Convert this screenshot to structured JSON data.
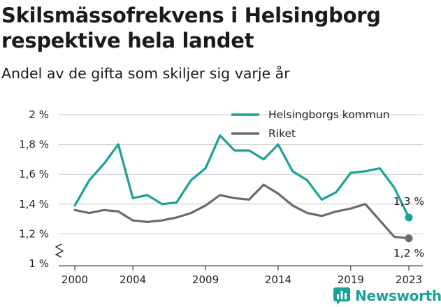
{
  "header": {
    "title": "Skilsmässofrekvens i Helsingborg respektive hela landet",
    "subtitle": "Andel av de gifta som skiljer sig varje år"
  },
  "brand": {
    "name": "Newsworthy",
    "icon": "newsworthy-logo-icon"
  },
  "colors": {
    "helsingborg": "#1aa198",
    "riket": "#6b6b6e",
    "grid": "#cccccc"
  },
  "chart_data": {
    "type": "line",
    "x": [
      2000,
      2001,
      2002,
      2003,
      2004,
      2005,
      2006,
      2007,
      2008,
      2009,
      2010,
      2011,
      2012,
      2013,
      2014,
      2015,
      2016,
      2017,
      2018,
      2019,
      2020,
      2021,
      2022,
      2023
    ],
    "series": [
      {
        "name": "Helsingborgs kommun",
        "color": "#1aa198",
        "values": [
          1.39,
          1.56,
          1.67,
          1.8,
          1.44,
          1.46,
          1.4,
          1.41,
          1.56,
          1.64,
          1.86,
          1.76,
          1.76,
          1.7,
          1.8,
          1.62,
          1.56,
          1.43,
          1.48,
          1.61,
          1.62,
          1.64,
          1.51,
          1.31
        ]
      },
      {
        "name": "Riket",
        "color": "#6b6b6e",
        "values": [
          1.36,
          1.34,
          1.36,
          1.35,
          1.29,
          1.28,
          1.29,
          1.31,
          1.34,
          1.39,
          1.46,
          1.44,
          1.43,
          1.53,
          1.47,
          1.39,
          1.34,
          1.32,
          1.35,
          1.37,
          1.4,
          1.29,
          1.18,
          1.17
        ]
      }
    ],
    "xticks": [
      2000,
      2004,
      2009,
      2014,
      2019,
      2023
    ],
    "xtick_labels": [
      "2000",
      "2004",
      "2009",
      "2014",
      "2019",
      "2023"
    ],
    "yticks": [
      1.0,
      1.2,
      1.4,
      1.6,
      1.8,
      2.0
    ],
    "ytick_labels": [
      "1 %",
      "1,2 %",
      "1,4 %",
      "1,6 %",
      "1,8 %",
      "2 %"
    ],
    "ylim": [
      1.0,
      2.0
    ],
    "xlim": [
      2000,
      2023
    ],
    "end_labels": [
      "1,3 %",
      "1,2 %"
    ],
    "legend_position": "top-right",
    "grid": true
  }
}
